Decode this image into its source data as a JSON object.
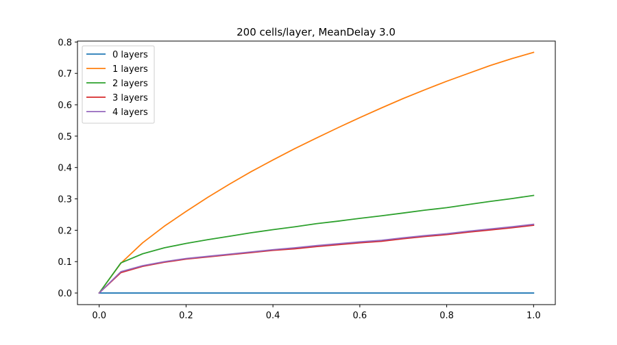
{
  "chart_data": {
    "type": "line",
    "title": "200 cells/layer, MeanDelay 3.0",
    "xlabel": "",
    "ylabel": "",
    "xlim": [
      -0.05,
      1.05
    ],
    "ylim": [
      -0.037,
      0.803
    ],
    "xticks": [
      0.0,
      0.2,
      0.4,
      0.6,
      0.8,
      1.0
    ],
    "xtick_labels": [
      "0.0",
      "0.2",
      "0.4",
      "0.6",
      "0.8",
      "1.0"
    ],
    "yticks": [
      0.0,
      0.1,
      0.2,
      0.3,
      0.4,
      0.5,
      0.6,
      0.7,
      0.8
    ],
    "ytick_labels": [
      "0.0",
      "0.1",
      "0.2",
      "0.3",
      "0.4",
      "0.5",
      "0.6",
      "0.7",
      "0.8"
    ],
    "grid": false,
    "legend_position": "top-left",
    "x": [
      0.0,
      0.05,
      0.1,
      0.15,
      0.2,
      0.25,
      0.3,
      0.35,
      0.4,
      0.45,
      0.5,
      0.55,
      0.6,
      0.65,
      0.7,
      0.75,
      0.8,
      0.85,
      0.9,
      0.95,
      1.0
    ],
    "series": [
      {
        "name": "0 layers",
        "color": "#1f77b4",
        "values": [
          0.0,
          0.0,
          0.0,
          0.0,
          0.0,
          0.0,
          0.0,
          0.0,
          0.0,
          0.0,
          0.0,
          0.0,
          0.0,
          0.0,
          0.0,
          0.0,
          0.0,
          0.0,
          0.0,
          0.0,
          0.0
        ]
      },
      {
        "name": "1 layers",
        "color": "#ff7f0e",
        "values": [
          0.0,
          0.095,
          0.16,
          0.213,
          0.26,
          0.305,
          0.347,
          0.387,
          0.424,
          0.46,
          0.494,
          0.527,
          0.559,
          0.59,
          0.62,
          0.648,
          0.675,
          0.7,
          0.725,
          0.747,
          0.767
        ]
      },
      {
        "name": "2 layers",
        "color": "#2ca02c",
        "values": [
          0.0,
          0.096,
          0.125,
          0.144,
          0.158,
          0.17,
          0.181,
          0.192,
          0.202,
          0.211,
          0.221,
          0.229,
          0.238,
          0.246,
          0.255,
          0.264,
          0.272,
          0.282,
          0.292,
          0.301,
          0.311
        ]
      },
      {
        "name": "3 layers",
        "color": "#d62728",
        "values": [
          0.0,
          0.065,
          0.085,
          0.098,
          0.108,
          0.115,
          0.122,
          0.129,
          0.136,
          0.141,
          0.148,
          0.154,
          0.16,
          0.165,
          0.173,
          0.18,
          0.186,
          0.194,
          0.201,
          0.208,
          0.216
        ]
      },
      {
        "name": "4 layers",
        "color": "#9467bd",
        "values": [
          0.0,
          0.068,
          0.087,
          0.1,
          0.11,
          0.117,
          0.124,
          0.131,
          0.138,
          0.144,
          0.151,
          0.157,
          0.163,
          0.168,
          0.176,
          0.183,
          0.189,
          0.197,
          0.204,
          0.211,
          0.219
        ]
      }
    ]
  }
}
